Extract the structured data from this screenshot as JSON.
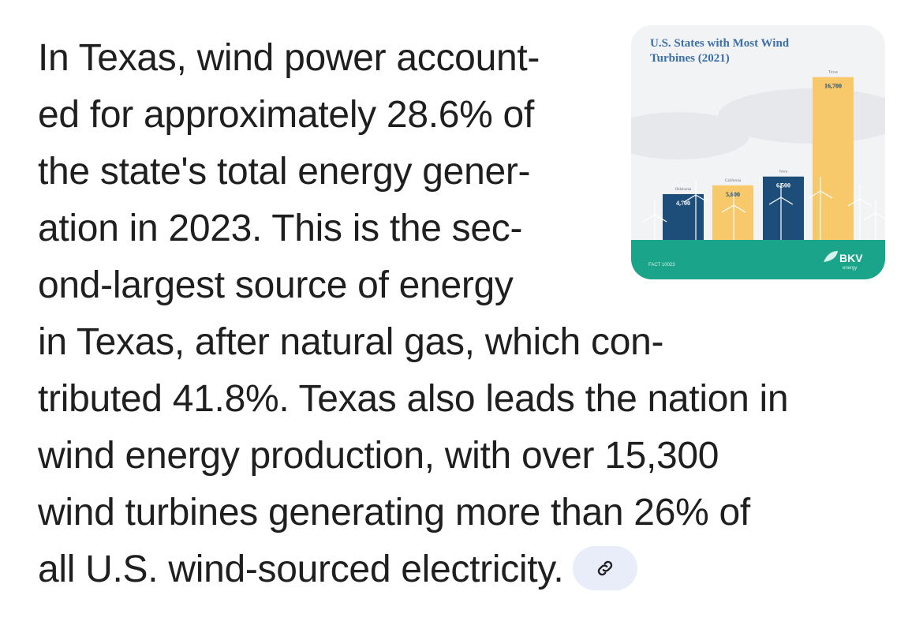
{
  "answer": {
    "lines_narrow": [
      "In Texas, wind power account-",
      "ed for approximately 28.6% of",
      "the state's total energy gener-",
      "ation in 2023. This is the sec-",
      "ond-largest source of energy"
    ],
    "lines_wide": [
      "in Texas, after natural gas, which con-",
      "tributed 41.8%. Texas also leads the nation in",
      "wind energy production, with over 15,300",
      "wind turbines generating more than 26% of",
      "all U.S. wind-sourced electricity."
    ],
    "link_icon": "link-icon"
  },
  "thumbnail": {
    "footer_left": "FACT 10023",
    "logo_text": "BKV",
    "logo_sub": "energy",
    "colors": {
      "navy": "#1d4e79",
      "yellow": "#f8c96a",
      "teal": "#1aa58a",
      "title": "#3b6fa8"
    }
  },
  "chart_data": {
    "type": "bar",
    "title": "U.S. States with Most Wind Turbines (2021)",
    "categories": [
      "Oklahoma",
      "California",
      "Iowa",
      "Texas"
    ],
    "values": [
      4700,
      5600,
      6500,
      16700
    ],
    "value_labels": [
      "4,700",
      "5,600",
      "6,500",
      "16,700"
    ],
    "colors": [
      "#1d4e79",
      "#f8c96a",
      "#1d4e79",
      "#f8c96a"
    ],
    "xlabel": "",
    "ylabel": ""
  }
}
